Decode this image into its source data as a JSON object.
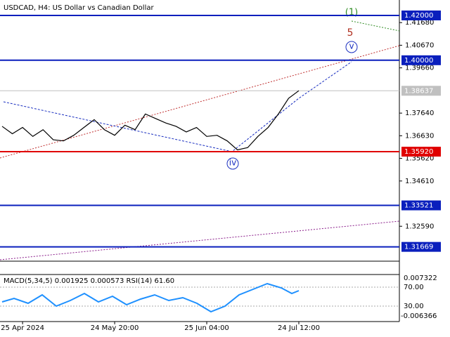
{
  "chart_data": {
    "type": "line",
    "title": "USDCAD, H4:  US Dollar vs Canadian Dollar",
    "categories": [
      null,
      null,
      "25 Apr 2024",
      null,
      null,
      null,
      null,
      null,
      null,
      null,
      null,
      "24 May 20:00",
      null,
      null,
      null,
      null,
      null,
      null,
      null,
      null,
      "25 Jun 04:00",
      null,
      null,
      null,
      null,
      null,
      null,
      null,
      null,
      "24 Jul 12:00"
    ],
    "series": [
      {
        "name": "USDCAD",
        "color": "#000000",
        "values": [
          1.3705,
          1.3672,
          1.37,
          1.366,
          1.369,
          1.3645,
          1.364,
          1.3665,
          1.37,
          1.3735,
          1.369,
          1.3665,
          1.371,
          1.369,
          1.376,
          1.374,
          1.372,
          1.3705,
          1.368,
          1.37,
          1.366,
          1.3665,
          1.364,
          1.36,
          1.361,
          1.366,
          1.37,
          1.376,
          1.383,
          1.3864
        ]
      }
    ],
    "ylim": [
      1.31031,
      1.42689
    ],
    "yticks": [
      {
        "value": 1.4168,
        "label": "1.41680"
      },
      {
        "value": 1.4067,
        "label": "1.40670"
      },
      {
        "value": 1.3966,
        "label": "1.39660"
      },
      {
        "value": 1.3764,
        "label": "1.37640"
      },
      {
        "value": 1.3663,
        "label": "1.36630"
      },
      {
        "value": 1.3562,
        "label": "1.35620"
      },
      {
        "value": 1.3461,
        "label": "1.34610"
      },
      {
        "value": 1.3259,
        "label": "1.32590"
      }
    ],
    "levels": [
      {
        "value": 1.42,
        "label": "1.42000",
        "color": "#0a1fbd"
      },
      {
        "value": 1.4,
        "label": "1.40000",
        "color": "#0a1fbd"
      },
      {
        "value": 1.3592,
        "label": "1.35920",
        "color": "#e00000"
      },
      {
        "value": 1.33521,
        "label": "1.33521",
        "color": "#0a1fbd"
      },
      {
        "value": 1.31669,
        "label": "1.31669",
        "color": "#0a1fbd"
      },
      {
        "value": 1.38637,
        "label": "1.38637",
        "color": "#c0c0c0"
      }
    ],
    "waves": [
      {
        "label": "(1)",
        "color": "#2e8b22"
      },
      {
        "label": "5",
        "color": "#b03020"
      },
      {
        "label": "v",
        "color": "#1a2fc0"
      },
      {
        "label": "iv",
        "color": "#1a2fc0"
      }
    ],
    "indicator": {
      "title": "MACD(5,34,5) 0.001925 0.000573 RSI(14) 61.60",
      "labels": [
        "0.007322",
        "70.00",
        "30.00",
        "-0.006366"
      ]
    }
  }
}
